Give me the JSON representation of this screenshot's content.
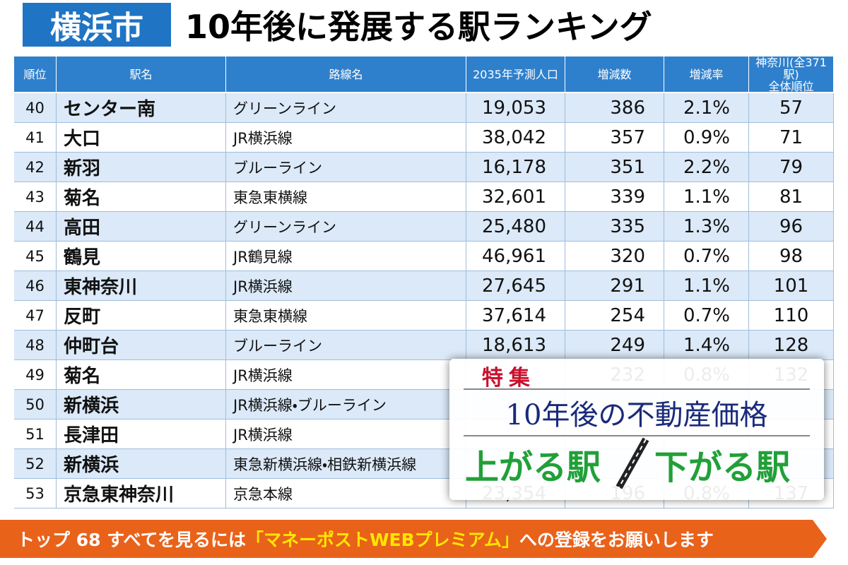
{
  "header": {
    "badge": "横浜市",
    "title": "10年後に発展する駅ランキング"
  },
  "table": {
    "columns": [
      "順位",
      "駅名",
      "路線名",
      "2035年予測人口",
      "増減数",
      "増減率",
      "神奈川(全371駅)\n全体順位"
    ],
    "rows": [
      [
        "40",
        "センター南",
        "グリーンライン",
        "19,053",
        "386",
        "2.1%",
        "57"
      ],
      [
        "41",
        "大口",
        "JR横浜線",
        "38,042",
        "357",
        "0.9%",
        "71"
      ],
      [
        "42",
        "新羽",
        "ブルーライン",
        "16,178",
        "351",
        "2.2%",
        "79"
      ],
      [
        "43",
        "菊名",
        "東急東横線",
        "32,601",
        "339",
        "1.1%",
        "81"
      ],
      [
        "44",
        "高田",
        "グリーンライン",
        "25,480",
        "335",
        "1.3%",
        "96"
      ],
      [
        "45",
        "鶴見",
        "JR鶴見線",
        "46,961",
        "320",
        "0.7%",
        "98"
      ],
      [
        "46",
        "東神奈川",
        "JR横浜線",
        "27,645",
        "291",
        "1.1%",
        "101"
      ],
      [
        "47",
        "反町",
        "東急東横線",
        "37,614",
        "254",
        "0.7%",
        "110"
      ],
      [
        "48",
        "仲町台",
        "ブルーライン",
        "18,613",
        "249",
        "1.4%",
        "128"
      ],
      [
        "49",
        "菊名",
        "JR横浜線",
        null,
        "232",
        "0.8%",
        "132"
      ],
      [
        "50",
        "新横浜",
        "JR横浜線・ブルーライン",
        null,
        null,
        null,
        null
      ],
      [
        "51",
        "長津田",
        "JR横浜線",
        null,
        null,
        null,
        null
      ],
      [
        "52",
        "新横浜",
        "東急新横浜線・相鉄新横浜線",
        null,
        null,
        null,
        null
      ],
      [
        "53",
        "京急東神奈川",
        "京急本線",
        "23,354",
        "196",
        "0.8%",
        "137"
      ]
    ]
  },
  "overlay": {
    "label": "特集",
    "title": "10年後の不動産価格",
    "up": "上がる駅",
    "down": "下がる駅"
  },
  "banner": {
    "prefix": "トップ 68 すべてを見るには",
    "highlight": "「マネーポストWEBプレミアム」",
    "suffix": "への登録をお願いします"
  }
}
